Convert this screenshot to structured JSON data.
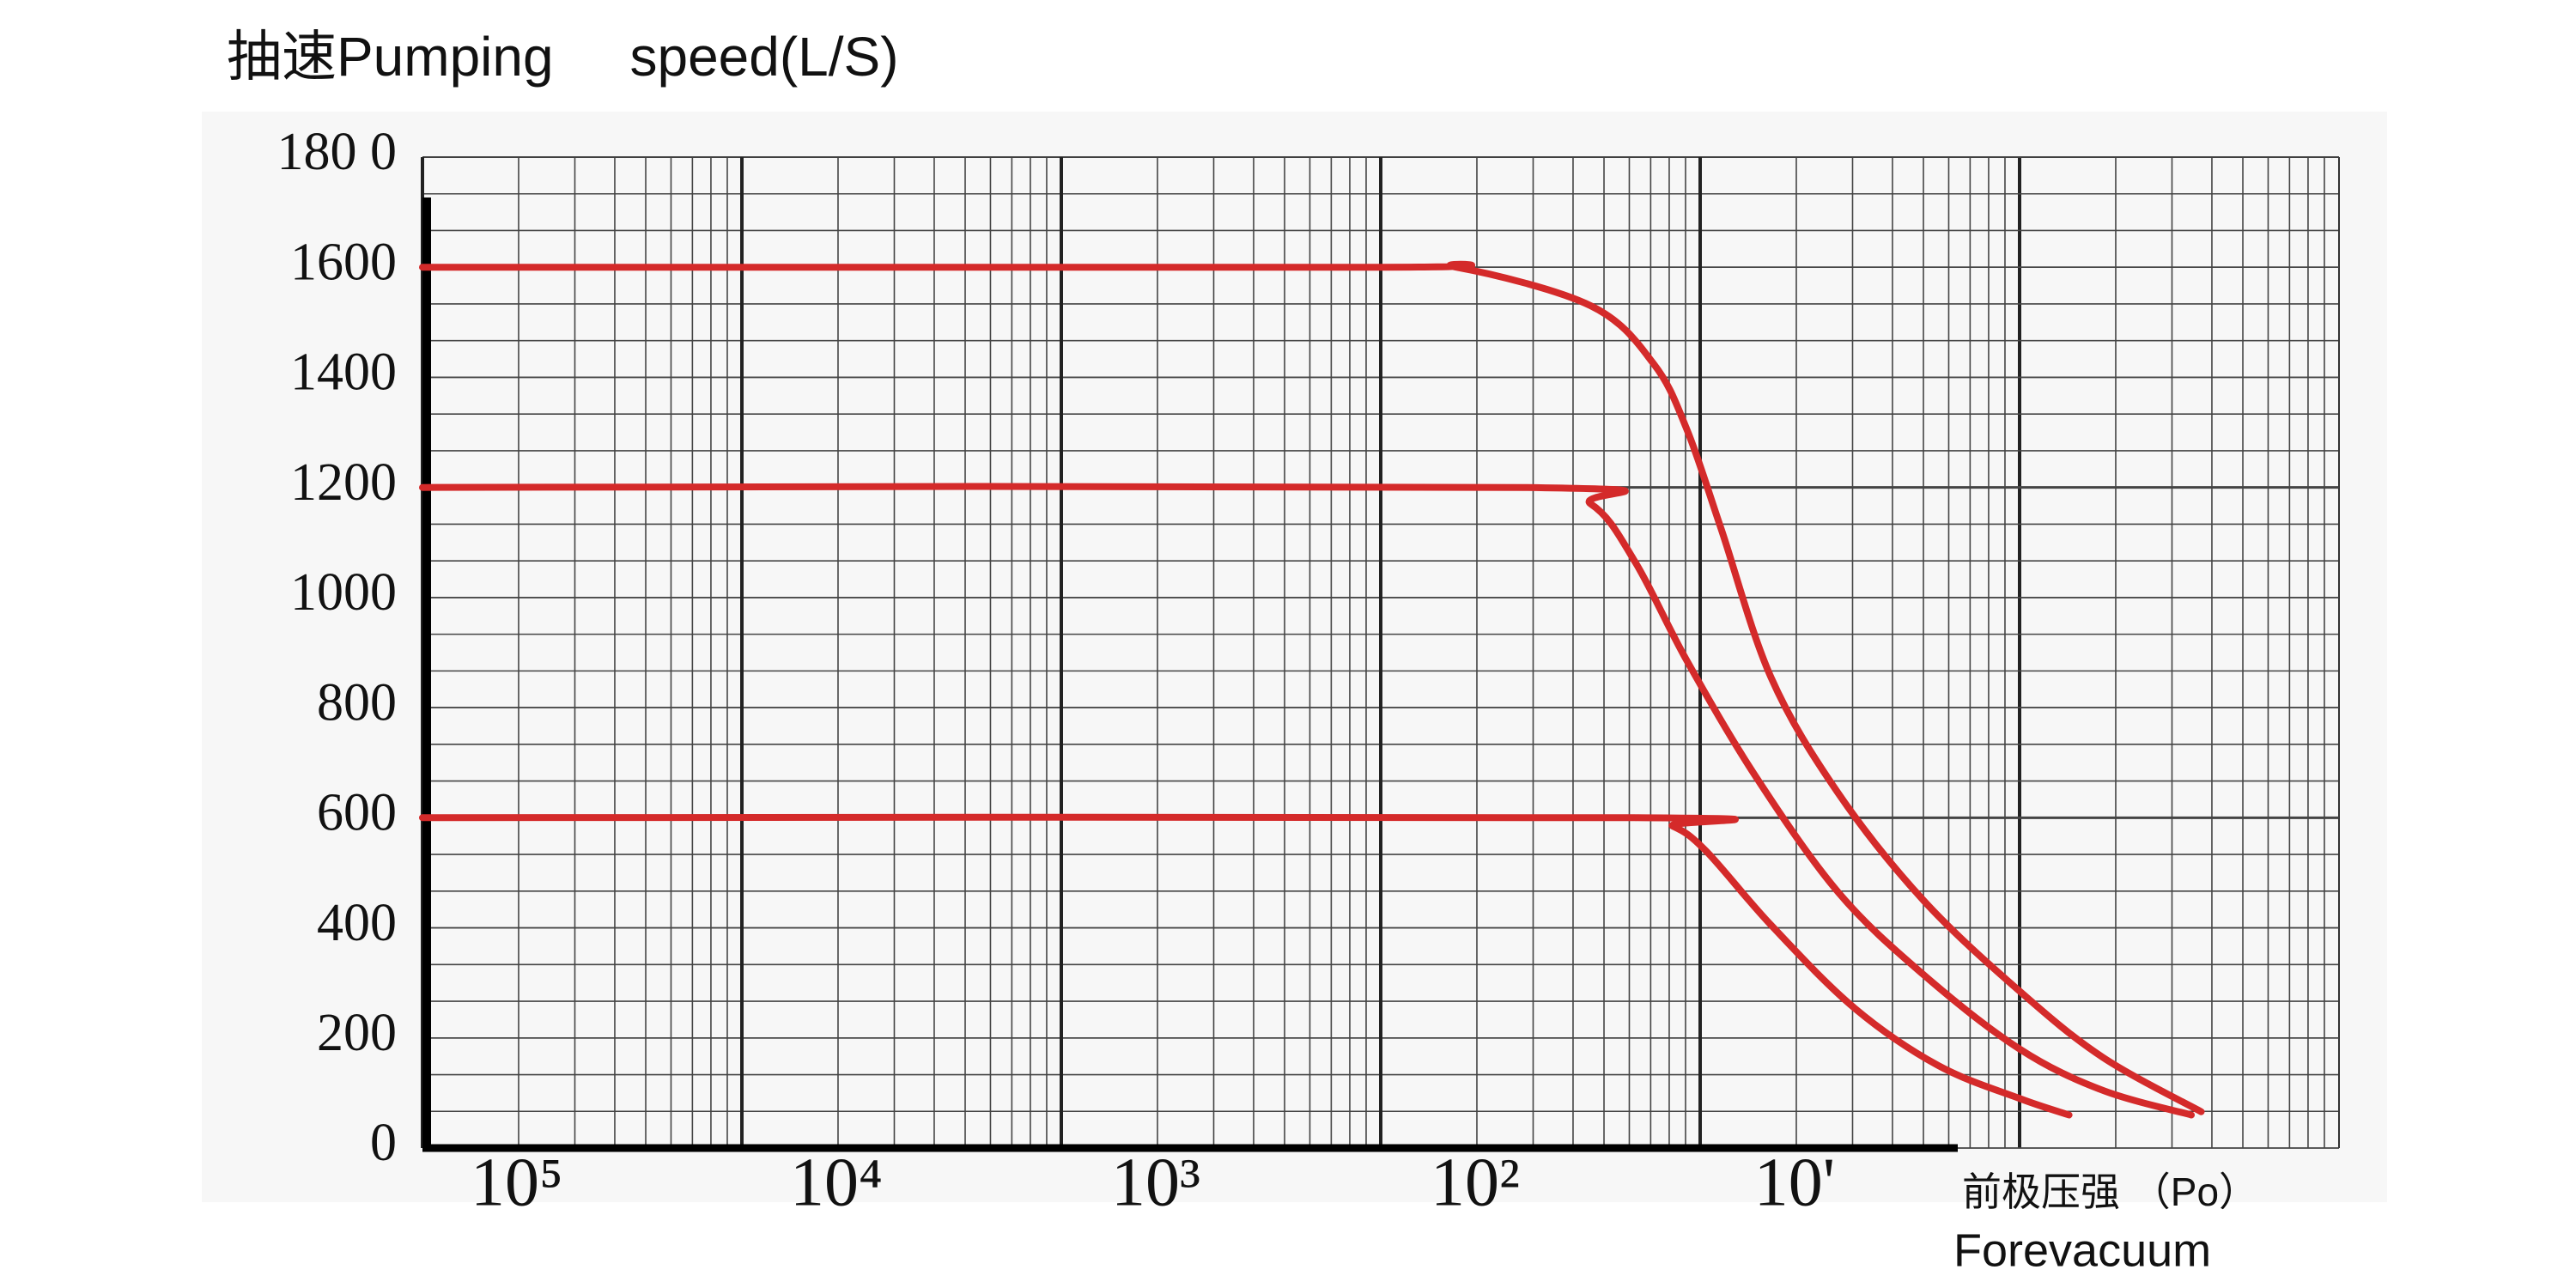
{
  "chart_data": {
    "type": "line",
    "title": "抽速Pumping     speed(L/S)",
    "xlabel": "前极压强 （Po）",
    "xlabel_en": "Forevacuum",
    "xscale": "log",
    "xlim": [
      100000,
      0.1
    ],
    "xticks": [
      {
        "value": 100000,
        "label": "10⁵"
      },
      {
        "value": 10000,
        "label": "10⁴"
      },
      {
        "value": 1000,
        "label": "10³"
      },
      {
        "value": 100,
        "label": "10²"
      },
      {
        "value": 10,
        "label": "10'"
      }
    ],
    "ylim": [
      0,
      1800
    ],
    "yticks": [
      0,
      200,
      400,
      600,
      800,
      1000,
      1200,
      1400,
      1600,
      {
        "value": 1800,
        "label": "180 0"
      }
    ],
    "grid": true,
    "series": [
      {
        "color": "#d42a2a",
        "x": [
          100000,
          100,
          58,
          22,
          14,
          11,
          8.6,
          6,
          3.7,
          2,
          1,
          0.55,
          0.27
        ],
        "values": [
          1600,
          1600,
          1600,
          1530,
          1425,
          1305,
          1125,
          855,
          645,
          450,
          285,
          165,
          66
        ]
      },
      {
        "color": "#d42a2a",
        "x": [
          100000,
          36,
          22,
          16,
          11,
          6.7,
          3.7,
          2,
          1,
          0.55,
          0.29
        ],
        "values": [
          1200,
          1200,
          1170,
          1065,
          885,
          675,
          465,
          315,
          180,
          105,
          60
        ]
      },
      {
        "color": "#d42a2a",
        "x": [
          100000,
          16,
          12.2,
          9.6,
          6,
          3.3,
          1.8,
          1,
          0.7
        ],
        "values": [
          600,
          600,
          585,
          540,
          405,
          255,
          150,
          90,
          60
        ]
      }
    ]
  }
}
